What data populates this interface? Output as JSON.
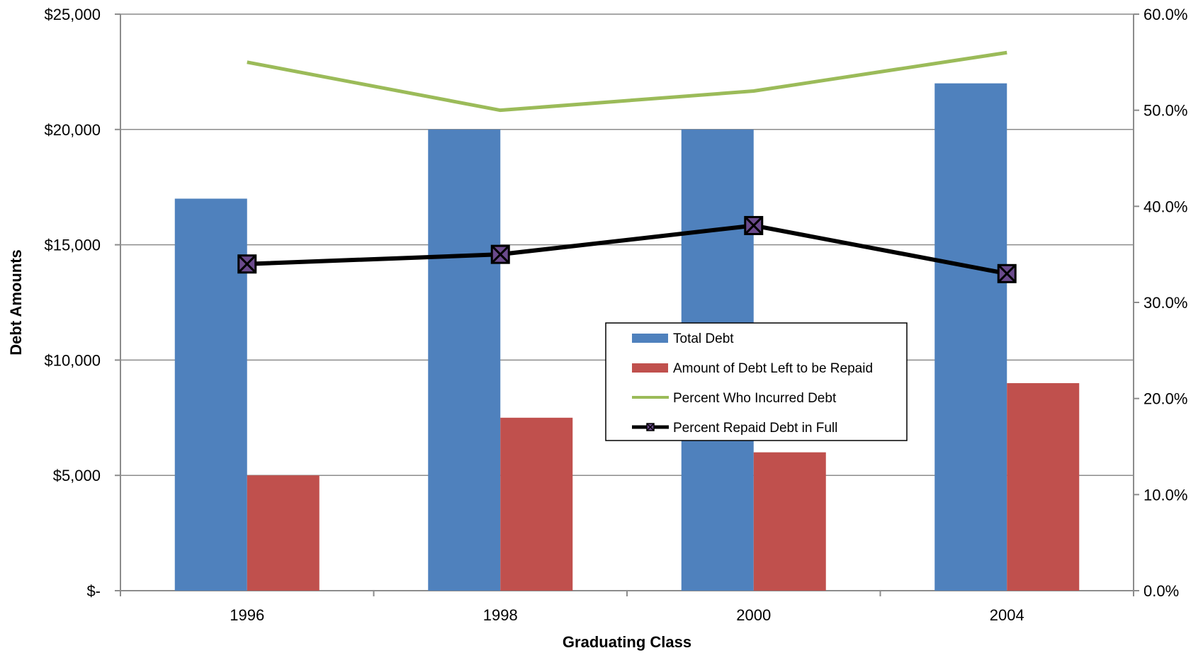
{
  "chart_data": {
    "type": "bar",
    "categories": [
      "1996",
      "1998",
      "2000",
      "2004"
    ],
    "xlabel": "Graduating Class",
    "ylabel": "Debt Amounts",
    "ylim": [
      0,
      25000
    ],
    "y2lim": [
      0,
      60
    ],
    "grid": true,
    "legend_position": "center-right",
    "y_ticks": [
      {
        "value": 0,
        "label": "$-"
      },
      {
        "value": 5000,
        "label": "$5,000"
      },
      {
        "value": 10000,
        "label": "$10,000"
      },
      {
        "value": 15000,
        "label": "$15,000"
      },
      {
        "value": 20000,
        "label": "$20,000"
      },
      {
        "value": 25000,
        "label": "$25,000"
      }
    ],
    "y2_ticks": [
      {
        "value": 0,
        "label": "0.0%"
      },
      {
        "value": 10,
        "label": "10.0%"
      },
      {
        "value": 20,
        "label": "20.0%"
      },
      {
        "value": 30,
        "label": "30.0%"
      },
      {
        "value": 40,
        "label": "40.0%"
      },
      {
        "value": 50,
        "label": "50.0%"
      },
      {
        "value": 60,
        "label": "60.0%"
      }
    ],
    "series": [
      {
        "name": "Total Debt",
        "type": "bar",
        "axis": "left",
        "color": "#4F81BD",
        "values": [
          17000,
          20000,
          20000,
          22000
        ]
      },
      {
        "name": "Amount of Debt Left to be Repaid",
        "type": "bar",
        "axis": "left",
        "color": "#C0504D",
        "values": [
          5000,
          7500,
          6000,
          9000
        ]
      },
      {
        "name": "Percent Who Incurred Debt",
        "type": "line",
        "axis": "right",
        "color": "#9BBB59",
        "values": [
          55,
          50,
          52,
          56
        ]
      },
      {
        "name": "Percent Repaid Debt in Full",
        "type": "line",
        "axis": "right",
        "color": "#000000",
        "marker": "x-square",
        "values": [
          34,
          35,
          38,
          33
        ]
      }
    ]
  }
}
